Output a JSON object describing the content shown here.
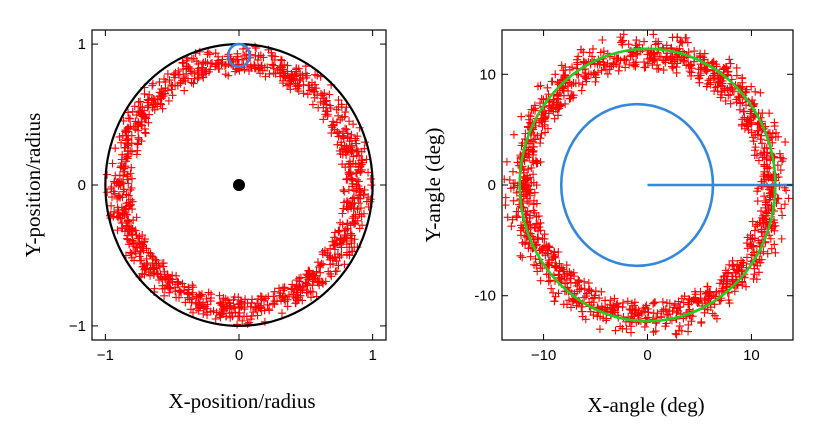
{
  "chart_data": [
    {
      "type": "scatter",
      "panel": "left",
      "xlabel": "X-position/radius",
      "ylabel": "Y-position/radius",
      "xlim": [
        -1.1,
        1.1
      ],
      "ylim": [
        -1.1,
        1.1
      ],
      "xticks": [
        -1,
        0,
        1
      ],
      "yticks": [
        -1,
        0,
        1
      ],
      "xtick_labels": [
        "−1",
        "0",
        "1"
      ],
      "ytick_labels": [
        "−1",
        "0",
        "1"
      ],
      "series": [
        {
          "name": "measured positions",
          "marker": "+",
          "color": "#ff0000",
          "distribution": "ring",
          "center": [
            0,
            0
          ],
          "radius_range": [
            0.78,
            0.99
          ],
          "count": 1100
        }
      ],
      "overlays": [
        {
          "name": "unit circle",
          "shape": "circle",
          "center": [
            0,
            0
          ],
          "radius": 1.0,
          "color": "#000000"
        },
        {
          "name": "center point",
          "shape": "dot",
          "center": [
            0,
            0
          ],
          "color": "#000000"
        },
        {
          "name": "reference circle",
          "shape": "circle",
          "center": [
            0,
            0.92
          ],
          "radius": 0.08,
          "color": "#3388dd"
        }
      ]
    },
    {
      "type": "scatter",
      "panel": "right",
      "xlabel": "X-angle  (deg)",
      "ylabel": "Y-angle  (deg)",
      "xlim": [
        -14,
        14
      ],
      "ylim": [
        -14,
        14
      ],
      "xticks": [
        -10,
        0,
        10
      ],
      "yticks": [
        -10,
        0,
        10
      ],
      "xtick_labels": [
        "−10",
        "0",
        "10"
      ],
      "ytick_labels": [
        "-10",
        "0",
        "10"
      ],
      "series": [
        {
          "name": "measured angles",
          "marker": "+",
          "color": "#ff0000",
          "distribution": "ring",
          "center": [
            0,
            0
          ],
          "radius_range": [
            10.5,
            13.8
          ],
          "count": 1300
        }
      ],
      "overlays": [
        {
          "name": "fitted circle",
          "shape": "circle",
          "center": [
            0,
            0
          ],
          "radius": 12.3,
          "color": "#22cc22"
        },
        {
          "name": "inner circle",
          "shape": "circle",
          "center": [
            -1,
            0
          ],
          "radius": 7.3,
          "color": "#3388dd"
        },
        {
          "name": "radius line",
          "shape": "line",
          "from": [
            0,
            0
          ],
          "to": [
            14,
            0
          ],
          "color": "#3388dd"
        }
      ]
    }
  ]
}
